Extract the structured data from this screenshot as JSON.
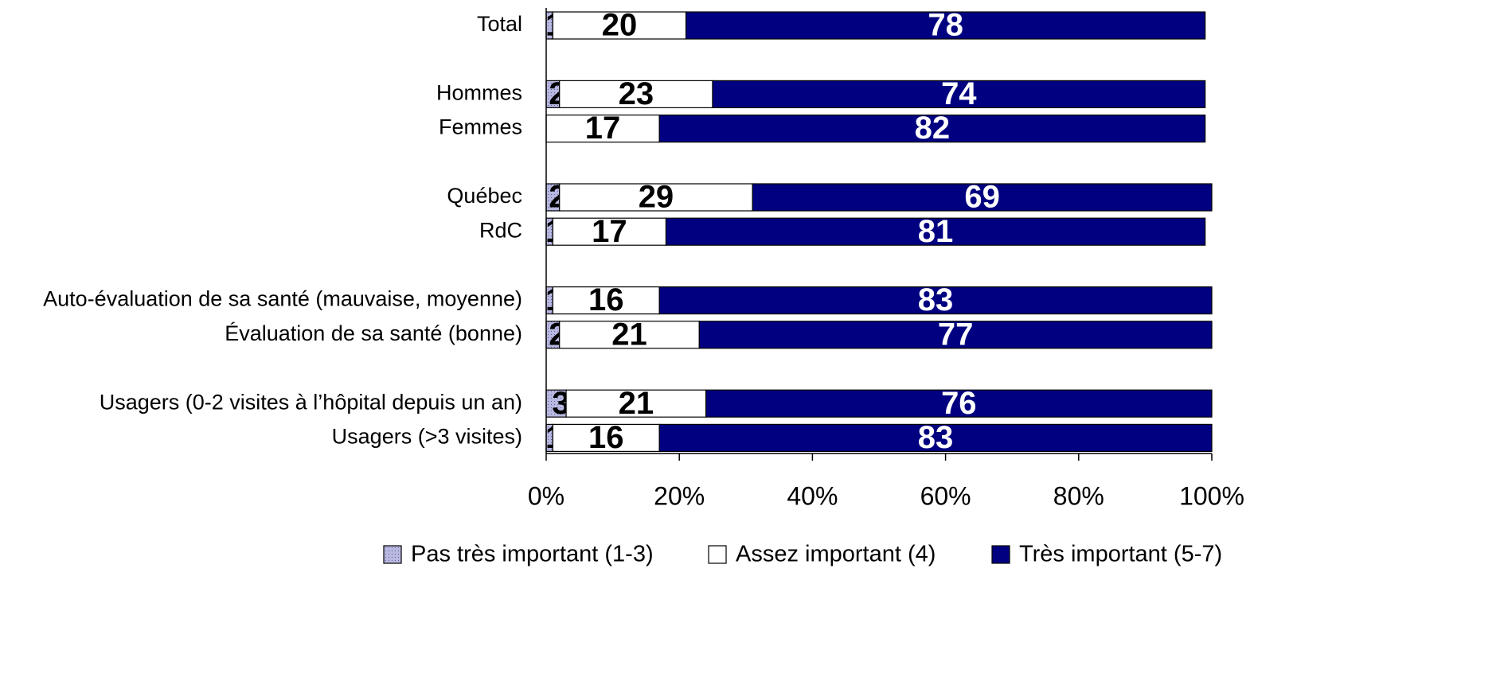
{
  "chart_data": {
    "type": "stacked_barh",
    "categories": [
      "Total",
      null,
      "Hommes",
      "Femmes",
      null,
      "Québec",
      "RdC",
      null,
      "Auto-évaluation de sa santé (mauvaise, moyenne)",
      "Évaluation de sa santé (bonne)",
      null,
      "Usagers (0-2 visites à l’hôpital depuis un an)",
      "Usagers (>3 visites)"
    ],
    "series": [
      {
        "name": "Pas très important (1-3)",
        "color": "#b8b8e0",
        "values": [
          1,
          null,
          2,
          0,
          null,
          2,
          1,
          null,
          1,
          2,
          null,
          3,
          1
        ]
      },
      {
        "name": "Assez important (4)",
        "color": "#ffffff",
        "values": [
          20,
          null,
          23,
          17,
          null,
          29,
          17,
          null,
          16,
          21,
          null,
          21,
          16
        ]
      },
      {
        "name": "Très important (5-7)",
        "color": "#000080",
        "values": [
          78,
          null,
          74,
          82,
          null,
          69,
          81,
          null,
          83,
          77,
          null,
          76,
          83
        ]
      }
    ],
    "xlim": [
      0,
      100
    ],
    "xticks": [
      {
        "value": 0,
        "label": "0%"
      },
      {
        "value": 20,
        "label": "20%"
      },
      {
        "value": 40,
        "label": "40%"
      },
      {
        "value": 60,
        "label": "60%"
      },
      {
        "value": 80,
        "label": "80%"
      },
      {
        "value": 100,
        "label": "100%"
      }
    ],
    "legend": "bottom"
  }
}
